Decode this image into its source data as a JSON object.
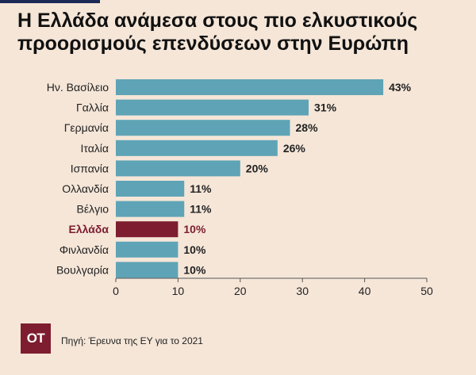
{
  "title_lines": [
    "Η Ελλάδα ανάμεσα στους πιο ελκυστικούς",
    "προορισμούς επενδύσεων στην Ευρώπη"
  ],
  "source": "Πηγή: Έρευνα της ΕΥ για το 2021",
  "logo_text": "ΟΤ",
  "colors": {
    "background": "#f5e6d8",
    "bar": "#5ea4b6",
    "highlight": "#7d1d2f",
    "text": "#222222",
    "top_rule": "#1d2a57"
  },
  "chart_data": {
    "type": "bar",
    "orientation": "horizontal",
    "title": "Η Ελλάδα ανάμεσα στους πιο ελκυστικούς προορισμούς επενδύσεων στην Ευρώπη",
    "categories": [
      "Ην. Βασίλειο",
      "Γαλλία",
      "Γερμανία",
      "Ιταλία",
      "Ισπανία",
      "Ολλανδία",
      "Βέλγιο",
      "Ελλάδα",
      "Φινλανδία",
      "Βουλγαρία"
    ],
    "values": [
      43,
      31,
      28,
      26,
      20,
      11,
      11,
      10,
      10,
      10
    ],
    "value_labels": [
      "43%",
      "31%",
      "28%",
      "26%",
      "20%",
      "11%",
      "11%",
      "10%",
      "10%",
      "10%"
    ],
    "highlight": "Ελλάδα",
    "xlim": [
      0,
      50
    ],
    "xticks": [
      0,
      10,
      20,
      30,
      40,
      50
    ],
    "xlabel": "",
    "ylabel": "",
    "grid": false,
    "legend": "none"
  }
}
